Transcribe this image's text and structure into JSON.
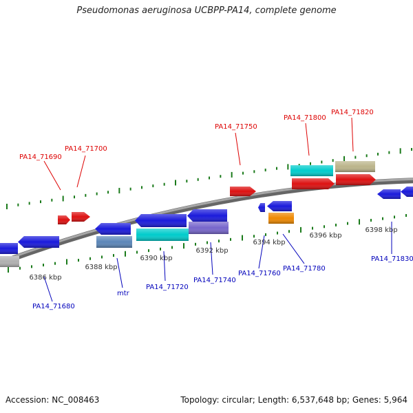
{
  "title": "Pseudomonas aeruginosa UCBPP-PA14, complete genome",
  "footer": {
    "accession": "Accession: NC_008463",
    "summary": "Topology: circular; Length: 6,537,648 bp; Genes: 5,964"
  },
  "colors": {
    "label_top": "#dd0000",
    "label_bottom": "#0000bb",
    "tick": "#1a7a1a",
    "backbone": "#808080"
  },
  "kbp_labels": [
    "6386 kbp",
    "6388 kbp",
    "6390 kbp",
    "6392 kbp",
    "6394 kbp",
    "6396 kbp",
    "6398 kbp"
  ],
  "gene_labels_top": [
    "PA14_71690",
    "PA14_71700",
    "PA14_71750",
    "PA14_71800",
    "PA14_71820"
  ],
  "gene_labels_bottom": [
    "PA14_71680",
    "mtr",
    "PA14_71720",
    "PA14_71740",
    "PA14_71760",
    "PA14_71780",
    "PA14_71830"
  ],
  "gene_colors": [
    "#dd1111",
    "#1a1adb",
    "#5b86b8",
    "#00cccc",
    "#7766cc",
    "#bbb48a",
    "#ee8800",
    "#b0b0b0"
  ]
}
